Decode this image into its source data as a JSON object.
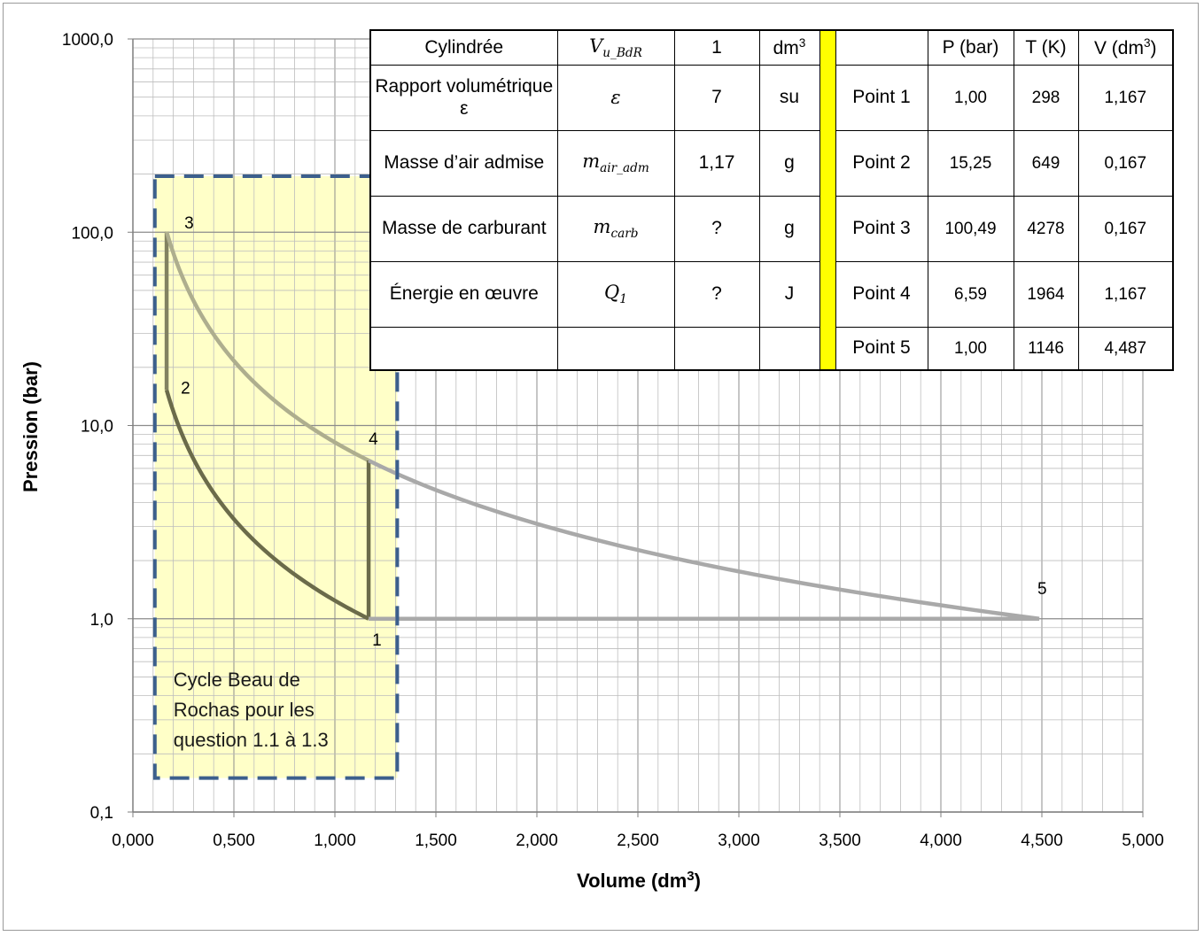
{
  "chart_data": {
    "type": "line",
    "xlabel": "Volume (dm",
    "xlabel_sup": "3",
    "xlabel_end": ")",
    "ylabel": "Pression (bar)",
    "xlim": [
      0,
      5
    ],
    "ylim": [
      0.1,
      1000
    ],
    "yscale": "log",
    "grid": true,
    "x_ticks": [
      "0,000",
      "0,500",
      "1,000",
      "1,500",
      "2,000",
      "2,500",
      "3,000",
      "3,500",
      "4,000",
      "4,500",
      "5,000"
    ],
    "y_ticks": [
      "0,1",
      "1,0",
      "10,0",
      "100,0",
      "1000,0"
    ],
    "point_labels": [
      {
        "text": "1",
        "x": 1.167,
        "y": 1.0
      },
      {
        "text": "2",
        "x": 0.167,
        "y": 15.25
      },
      {
        "text": "3",
        "x": 0.167,
        "y": 100.49
      },
      {
        "text": "4",
        "x": 1.167,
        "y": 6.59
      },
      {
        "text": "5",
        "x": 4.487,
        "y": 1.0
      }
    ],
    "series": [
      {
        "segment": "compression 1-2",
        "from": [
          1.167,
          1.0
        ],
        "to": [
          0.167,
          15.25
        ],
        "curve": "isentropic",
        "color": "#6b6b4a"
      },
      {
        "segment": "combustion 2-3",
        "from": [
          0.167,
          15.25
        ],
        "to": [
          0.167,
          100.49
        ],
        "curve": "line",
        "color": "#828261"
      },
      {
        "segment": "detente 3-4",
        "from": [
          0.167,
          100.49
        ],
        "to": [
          1.167,
          6.59
        ],
        "curve": "isentropic",
        "color": "#aeae8e"
      },
      {
        "segment": "echappement 4-1",
        "from": [
          1.167,
          6.59
        ],
        "to": [
          1.167,
          1.0
        ],
        "curve": "line",
        "color": "#6b6b4a"
      },
      {
        "segment": "detente 4-5",
        "from": [
          1.167,
          6.59
        ],
        "to": [
          4.487,
          1.0
        ],
        "curve": "isentropic",
        "color": "#a9a9a9"
      },
      {
        "segment": "isobare 1-5",
        "from": [
          1.167,
          1.0
        ],
        "to": [
          4.487,
          1.0
        ],
        "curve": "line",
        "color": "#a9a9a9"
      }
    ],
    "highlight_zone": {
      "x": [
        0.1,
        1.3
      ],
      "y": [
        0.15,
        195
      ],
      "fill": "#ffffc8",
      "border": "#3c5f8c",
      "text": [
        "Cycle Beau de",
        "Rochas pour les",
        "question 1.1 à 1.3"
      ]
    }
  },
  "table": {
    "left": [
      {
        "label": "Cylindrée",
        "symbol": "V",
        "symbol_sub": "u_BdR",
        "value": "1",
        "unit": "dm",
        "unit_sup": "3"
      },
      {
        "label": "Rapport volumétrique ε",
        "symbol": "ε",
        "symbol_sub": "",
        "value": "7",
        "unit": "su",
        "unit_sup": ""
      },
      {
        "label": "Masse d’air admise",
        "symbol": "m",
        "symbol_sub": "air_adm",
        "value": "1,17",
        "unit": "g",
        "unit_sup": ""
      },
      {
        "label": "Masse de carburant",
        "symbol": "m",
        "symbol_sub": "carb",
        "value": "?",
        "unit": "g",
        "unit_sup": ""
      },
      {
        "label": "Énergie en œuvre",
        "symbol": "Q",
        "symbol_sub": "1",
        "value": "?",
        "unit": "J",
        "unit_sup": ""
      }
    ],
    "right_headers": {
      "p": "P (bar)",
      "t": "T (K)",
      "v": "V (dm",
      "v_sup": "3",
      "v_end": ")"
    },
    "points": [
      {
        "name": "Point 1",
        "p": "1,00",
        "t": "298",
        "v": "1,167"
      },
      {
        "name": "Point 2",
        "p": "15,25",
        "t": "649",
        "v": "0,167"
      },
      {
        "name": "Point 3",
        "p": "100,49",
        "t": "4278",
        "v": "0,167"
      },
      {
        "name": "Point 4",
        "p": "6,59",
        "t": "1964",
        "v": "1,167"
      },
      {
        "name": "Point 5",
        "p": "1,00",
        "t": "1146",
        "v": "4,487"
      }
    ],
    "separator_color": "#ffff00"
  }
}
